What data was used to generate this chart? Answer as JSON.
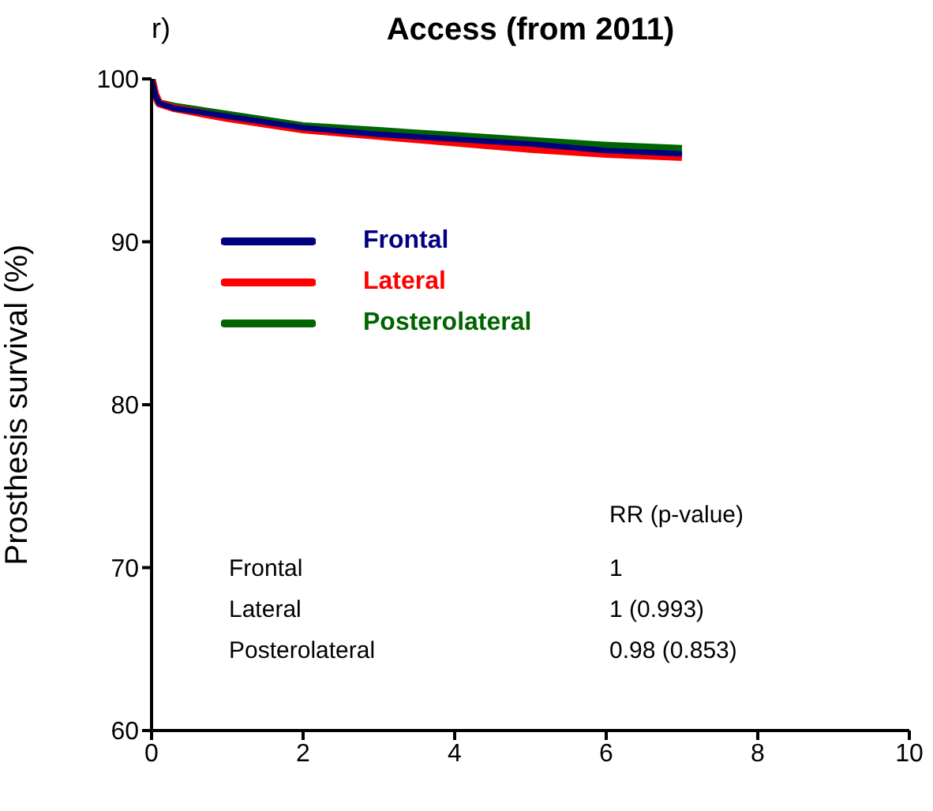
{
  "chart_data": {
    "type": "line",
    "title": "Access (from 2011)",
    "ylabel": "Prosthesis survival (%)",
    "x": [
      0,
      0.05,
      0.1,
      0.3,
      1,
      2,
      3,
      4,
      5,
      6,
      7
    ],
    "series": [
      {
        "name": "Frontal",
        "color": "#000080",
        "values": [
          100,
          99,
          98.5,
          98.2,
          97.7,
          97.0,
          96.6,
          96.3,
          96.0,
          95.6,
          95.4
        ]
      },
      {
        "name": "Lateral",
        "color": "#ff0000",
        "values": [
          100,
          99,
          98.5,
          98.2,
          97.6,
          96.9,
          96.5,
          96.1,
          95.7,
          95.4,
          95.2
        ]
      },
      {
        "name": "Posterolateral",
        "color": "#006400",
        "values": [
          100,
          99,
          98.5,
          98.3,
          97.8,
          97.1,
          96.8,
          96.5,
          96.2,
          95.9,
          95.7
        ]
      }
    ],
    "xlim": [
      0,
      10
    ],
    "xticks": [
      0,
      2,
      4,
      6,
      8,
      10
    ],
    "ylim": [
      60,
      100
    ],
    "yticks": [
      60,
      70,
      80,
      90,
      100
    ],
    "grid": false,
    "legend": "top left",
    "marker": "none",
    "line_style": "solid",
    "annotations": [
      "r)",
      "RR (p-value)",
      "Frontal",
      "1",
      "Lateral",
      "1 (0.993)",
      "Posterolateral",
      "0.98 (0.853)"
    ]
  }
}
